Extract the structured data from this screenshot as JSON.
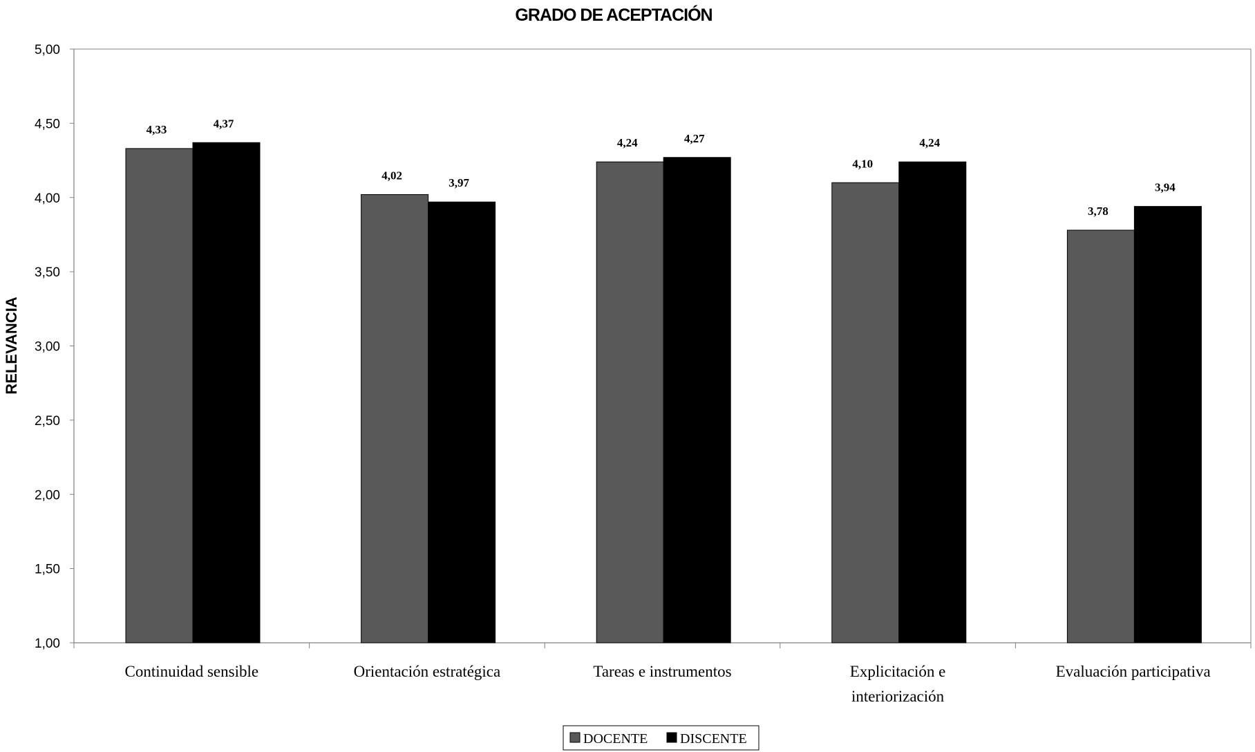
{
  "chart_data": {
    "type": "bar",
    "title": "GRADO DE ACEPTACIÓN",
    "xlabel": "",
    "ylabel": "RELEVANCIA",
    "ylim": [
      1.0,
      5.0
    ],
    "yticks": [
      "1,00",
      "1,50",
      "2,00",
      "2,50",
      "3,00",
      "3,50",
      "4,00",
      "4,50",
      "5,00"
    ],
    "grid": false,
    "legend": "bottom",
    "categories": [
      [
        "Continuidad sensible"
      ],
      [
        "Orientación estratégica"
      ],
      [
        "Tareas e instrumentos"
      ],
      [
        "Explicitación e",
        "interiorización"
      ],
      [
        "Evaluación participativa"
      ]
    ],
    "series": [
      {
        "name": "DOCENTE",
        "color": "#595959",
        "values": [
          4.33,
          4.02,
          4.24,
          4.1,
          3.78
        ],
        "labels": [
          "4,33",
          "4,02",
          "4,24",
          "4,10",
          "3,78"
        ]
      },
      {
        "name": "DISCENTE",
        "color": "#000000",
        "values": [
          4.37,
          3.97,
          4.27,
          4.24,
          3.94
        ],
        "labels": [
          "4,37",
          "3,97",
          "4,27",
          "4,24",
          "3,94"
        ]
      }
    ]
  }
}
